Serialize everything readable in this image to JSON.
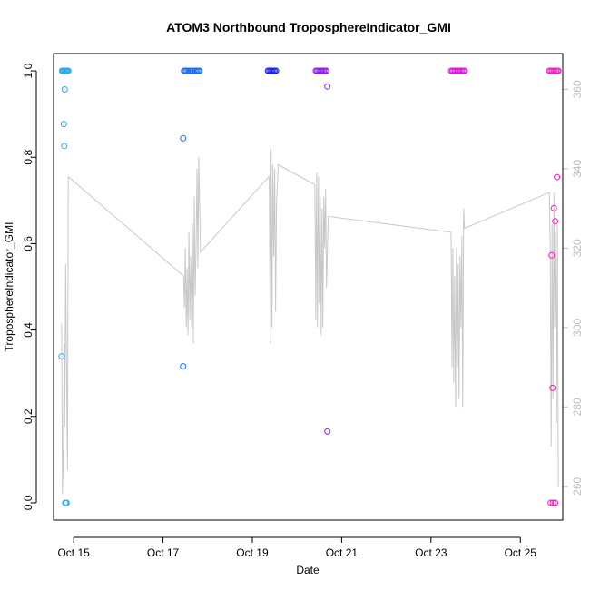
{
  "chart_data": {
    "type": "scatter",
    "title": "ATOM3 Northbound TroposphereIndicator_GMI",
    "xlabel": "Date",
    "ylabel": "TroposphereIndicator_GMI",
    "xlim": [
      14.55,
      25.95
    ],
    "ylim": [
      -0.04,
      1.04
    ],
    "y2lim": [
      251.5,
      369
    ],
    "x_ticks": [
      {
        "value": 15,
        "label": "Oct 15"
      },
      {
        "value": 17,
        "label": "Oct 17"
      },
      {
        "value": 19,
        "label": "Oct 19"
      },
      {
        "value": 21,
        "label": "Oct 21"
      },
      {
        "value": 23,
        "label": "Oct 23"
      },
      {
        "value": 25,
        "label": "Oct 25"
      }
    ],
    "y_ticks": [
      {
        "value": 0.0,
        "label": "0.0"
      },
      {
        "value": 0.2,
        "label": "0.2"
      },
      {
        "value": 0.4,
        "label": "0.4"
      },
      {
        "value": 0.6,
        "label": "0.6"
      },
      {
        "value": 0.8,
        "label": "0.8"
      },
      {
        "value": 1.0,
        "label": "1.0"
      }
    ],
    "y2_ticks": [
      {
        "value": 260,
        "label": "260"
      },
      {
        "value": 280,
        "label": "280"
      },
      {
        "value": 300,
        "label": "300"
      },
      {
        "value": 320,
        "label": "320"
      },
      {
        "value": 340,
        "label": "340"
      },
      {
        "value": 360,
        "label": "360"
      }
    ],
    "line_color": "#c8c8c8",
    "series": [
      {
        "color": "#2eaaf5",
        "x": [
          14.73,
          14.76,
          14.78,
          14.8,
          14.82,
          14.84,
          14.86,
          14.88,
          14.74,
          14.8,
          14.78,
          14.83,
          14.79,
          14.81,
          14.84,
          14.87
        ],
        "y": [
          0.339,
          1.0,
          1.0,
          1.0,
          1.0,
          1.0,
          1.0,
          1.0,
          1.0,
          0.957,
          0.877,
          0.0,
          0.826,
          0.0,
          0.0,
          1.0
        ]
      },
      {
        "color": "#1c6ef7",
        "x": [
          17.45,
          17.47,
          17.5,
          17.53,
          17.56,
          17.6,
          17.63,
          17.66,
          17.7,
          17.73,
          17.76,
          17.79,
          17.82,
          17.45
        ],
        "y": [
          0.844,
          1.0,
          1.0,
          1.0,
          1.0,
          1.0,
          1.0,
          1.0,
          1.0,
          1.0,
          1.0,
          1.0,
          1.0,
          0.316
        ]
      },
      {
        "color": "#1a1aff",
        "x": [
          19.35,
          19.38,
          19.41,
          19.44,
          19.47,
          19.5,
          19.53
        ],
        "y": [
          1.0,
          1.0,
          1.0,
          1.0,
          1.0,
          1.0,
          1.0
        ]
      },
      {
        "color": "#8a1df5",
        "x": [
          20.42,
          20.45,
          20.48,
          20.51,
          20.54,
          20.57,
          20.6,
          20.63,
          20.66,
          20.68,
          20.68
        ],
        "y": [
          1.0,
          1.0,
          1.0,
          1.0,
          1.0,
          1.0,
          1.0,
          1.0,
          1.0,
          0.964,
          0.165
        ]
      },
      {
        "color": "#e014e0",
        "x": [
          23.45,
          23.48,
          23.51,
          23.54,
          23.57,
          23.6,
          23.63,
          23.66,
          23.69,
          23.72,
          23.75
        ],
        "y": [
          1.0,
          1.0,
          1.0,
          1.0,
          1.0,
          1.0,
          1.0,
          1.0,
          1.0,
          1.0,
          1.0
        ]
      },
      {
        "color": "#f01ebe",
        "x": [
          25.65,
          25.68,
          25.71,
          25.74,
          25.77,
          25.8,
          25.83,
          25.85,
          25.7,
          25.72,
          25.75,
          25.78,
          25.82,
          25.68,
          25.73,
          25.78
        ],
        "y": [
          1.0,
          1.0,
          1.0,
          1.0,
          1.0,
          1.0,
          1.0,
          1.0,
          0.573,
          0.266,
          0.682,
          0.652,
          0.754,
          0.0,
          0.0,
          0.0
        ]
      }
    ],
    "line": {
      "x": [
        14.73,
        14.75,
        14.77,
        14.79,
        14.8,
        14.82,
        14.84,
        14.86,
        14.88,
        17.46,
        17.48,
        17.5,
        17.52,
        17.54,
        17.56,
        17.58,
        17.6,
        17.62,
        17.64,
        17.66,
        17.68,
        17.7,
        17.72,
        17.74,
        17.76,
        17.78,
        17.8,
        17.84,
        19.37,
        19.38,
        19.4,
        19.42,
        19.44,
        19.46,
        19.48,
        19.5,
        19.52,
        19.54,
        19.58,
        20.4,
        20.42,
        20.44,
        20.46,
        20.48,
        20.5,
        20.52,
        20.54,
        20.56,
        20.58,
        20.6,
        20.62,
        20.64,
        20.66,
        20.7,
        23.45,
        23.47,
        23.49,
        23.51,
        23.53,
        23.55,
        23.57,
        23.59,
        23.61,
        23.63,
        23.65,
        23.67,
        23.69,
        23.71,
        23.73,
        23.75,
        25.65,
        25.67,
        25.69,
        25.71,
        25.73,
        25.75,
        25.77,
        25.79,
        25.81,
        25.83,
        25.85
      ],
      "y": [
        301,
        258,
        270,
        296,
        275,
        316,
        290,
        264,
        338,
        313,
        305,
        320,
        300,
        315,
        298,
        324,
        302,
        318,
        300,
        326,
        296,
        333,
        308,
        320,
        340,
        315,
        343,
        319,
        338,
        335,
        296,
        345,
        300,
        341,
        318,
        340,
        304,
        331,
        341,
        336,
        302,
        339,
        300,
        338,
        306,
        333,
        298,
        330,
        300,
        333,
        320,
        335,
        310,
        328,
        324,
        290,
        320,
        286,
        313,
        280,
        320,
        290,
        316,
        282,
        318,
        300,
        323,
        280,
        330,
        325,
        334,
        320,
        270,
        326,
        282,
        334,
        300,
        324,
        276,
        326,
        260
      ]
    }
  }
}
